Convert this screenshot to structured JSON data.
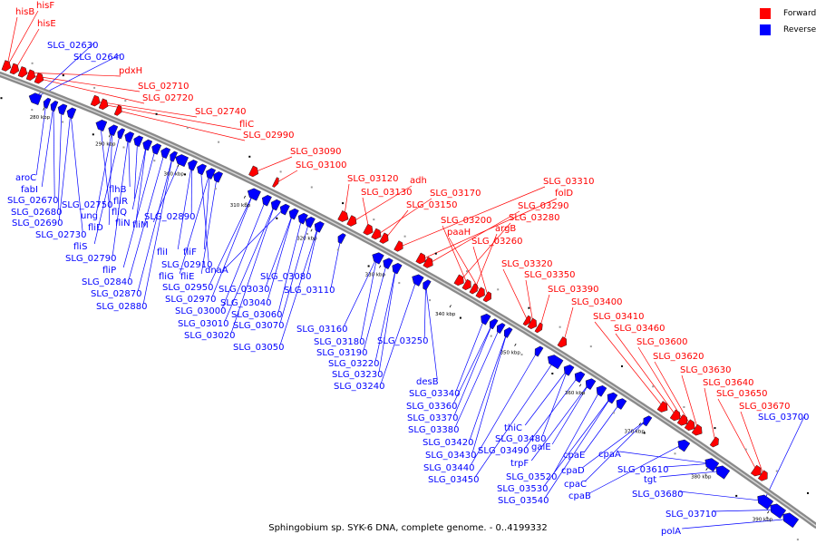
{
  "colors": {
    "forward": "#ff0000",
    "reverse": "#0000ff",
    "backbone": "#8a8a8a"
  },
  "legend": {
    "forward_label": "Forward",
    "reverse_label": "Reverse"
  },
  "caption": "Sphingobium sp. SYK-6 DNA, complete genome. - 0..4199332",
  "diagram": {
    "ticks": [
      "280 kbp",
      "290 kbp",
      "300 kbp",
      "310 kbp",
      "320 kbp",
      "330 kbp",
      "340 kbp",
      "350 kbp",
      "360 kbp",
      "370 kbp",
      "380 kbp",
      "390 kbp"
    ],
    "forward_genes": [
      "hisB",
      "hisF",
      "hisE",
      "pdxH",
      "SLG_02710",
      "SLG_02720",
      "SLG_02740",
      "fliC",
      "SLG_02990",
      "SLG_03090",
      "SLG_03100",
      "SLG_03120",
      "adh",
      "SLG_03130",
      "SLG_03170",
      "SLG_03150",
      "SLG_03310",
      "folD",
      "SLG_03290",
      "SLG_03280",
      "SLG_03200",
      "argB",
      "paaH",
      "SLG_03260",
      "SLG_03320",
      "SLG_03350",
      "SLG_03390",
      "SLG_03400",
      "SLG_03410",
      "SLG_03460",
      "SLG_03600",
      "SLG_03620",
      "SLG_03630",
      "SLG_03640",
      "SLG_03650",
      "SLG_03670"
    ],
    "reverse_genes": [
      "SLG_02630",
      "SLG_02640",
      "aroC",
      "fabI",
      "SLG_02670",
      "SLG_02680",
      "SLG_02690",
      "SLG_02730",
      "SLG_02750",
      "ung",
      "fliD",
      "fliS",
      "SLG_02790",
      "flhB",
      "fliR",
      "fliQ",
      "fliN",
      "fliP",
      "SLG_02840",
      "SLG_02870",
      "SLG_02880",
      "fliM",
      "SLG_02890",
      "fliI",
      "SLG_02910",
      "fliF",
      "fliG",
      "fliE",
      "SLG_02950",
      "SLG_02970",
      "SLG_03000",
      "SLG_03010",
      "SLG_03020",
      "dnaA",
      "SLG_03030",
      "SLG_03040",
      "SLG_03060",
      "SLG_03070",
      "SLG_03050",
      "SLG_03080",
      "SLG_03110",
      "SLG_03160",
      "SLG_03180",
      "SLG_03190",
      "SLG_03220",
      "SLG_03230",
      "SLG_03240",
      "SLG_03250",
      "desB",
      "SLG_03340",
      "SLG_03360",
      "SLG_03370",
      "SLG_03380",
      "SLG_03420",
      "SLG_03430",
      "SLG_03440",
      "SLG_03450",
      "thiC",
      "SLG_03480",
      "SLG_03490",
      "trpF",
      "galE",
      "SLG_03520",
      "SLG_03530",
      "SLG_03540",
      "cpaE",
      "cpaD",
      "cpaC",
      "cpaB",
      "cpaA",
      "SLG_03610",
      "tgt",
      "SLG_03680",
      "SLG_03700",
      "SLG_03710",
      "polA"
    ]
  }
}
